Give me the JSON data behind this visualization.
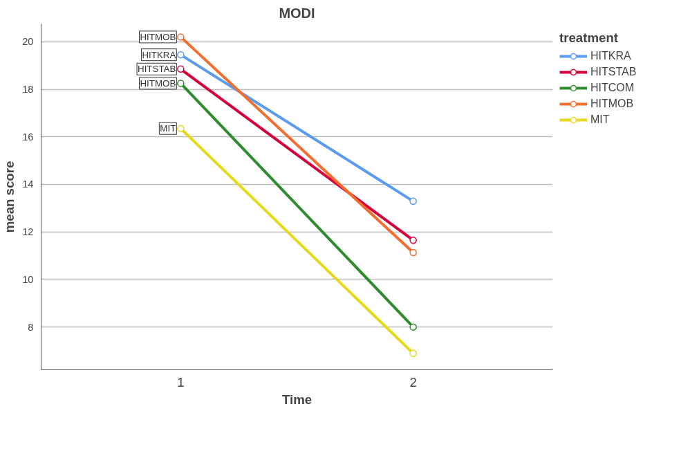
{
  "chart_data": {
    "type": "line",
    "title": "MODI",
    "xlabel": "Time",
    "ylabel": "mean score",
    "legend_title": "treatment",
    "categories": [
      "1",
      "2"
    ],
    "ylim": [
      6.2,
      20.75
    ],
    "yticks": [
      8,
      10,
      12,
      14,
      16,
      18,
      20
    ],
    "grid": "y",
    "legend": "top right",
    "marker": "circle",
    "line_style": "solid",
    "series": [
      {
        "name": "HITKRA",
        "color": "#5b9bef",
        "values": [
          19.45,
          13.29
        ]
      },
      {
        "name": "HITSTAB",
        "color": "#d5003a",
        "values": [
          18.85,
          11.65
        ]
      },
      {
        "name": "HITCOM",
        "color": "#2e8b2e",
        "values": [
          18.25,
          8.0
        ]
      },
      {
        "name": "HITMOB",
        "color": "#f36d2f",
        "values": [
          20.2,
          11.13
        ]
      },
      {
        "name": "MIT",
        "color": "#e6d81a",
        "values": [
          16.35,
          6.89
        ]
      }
    ],
    "annotations": [
      {
        "text": "HITMOB",
        "x": "1",
        "y": 20.2
      },
      {
        "text": "HITKRA",
        "x": "1",
        "y": 19.45
      },
      {
        "text": "HITSTAB",
        "x": "1",
        "y": 18.85
      },
      {
        "text": "HITMOB",
        "x": "1",
        "y": 18.25
      },
      {
        "text": "MIT",
        "x": "1",
        "y": 16.35
      }
    ]
  }
}
